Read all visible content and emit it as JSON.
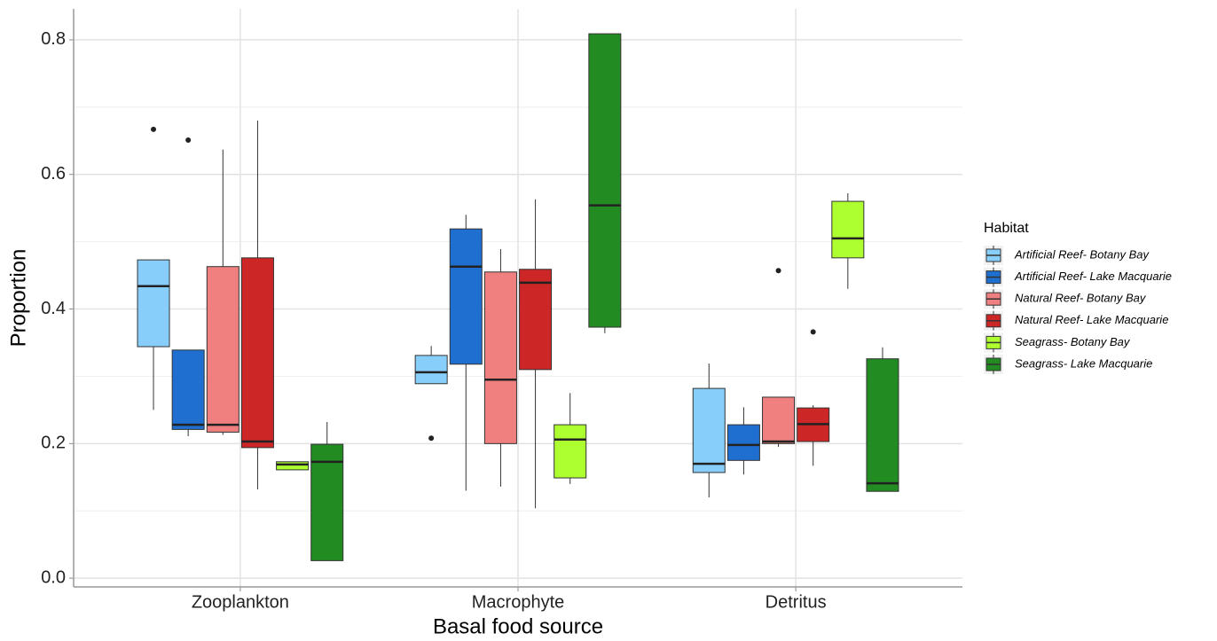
{
  "chart_data": {
    "type": "box",
    "x_label": "Basal food source",
    "y_label": "Proportion",
    "legend_title": "Habitat",
    "legend": "right",
    "grid": true,
    "categories": [
      "Zooplankton",
      "Macrophyte",
      "Detritus"
    ],
    "ylim": [
      -0.013,
      0.846
    ],
    "yticks": [
      {
        "value": 0,
        "label": "0.0"
      },
      0.2,
      0.4,
      0.6,
      0.8
    ],
    "minor_yticks": [
      0.1,
      0.3,
      0.5,
      0.7
    ],
    "series": [
      {
        "name": "Artificial Reef- Botany Bay",
        "color": "#87cefa",
        "low": [
          0.25,
          0.289,
          0.12
        ],
        "q1": [
          0.344,
          0.289,
          0.157
        ],
        "median": [
          0.434,
          0.306,
          0.17
        ],
        "q3": [
          0.473,
          0.331,
          0.282
        ],
        "high": [
          0.473,
          0.345,
          0.319
        ],
        "outliers": [
          [
            0.667
          ],
          [
            0.208
          ],
          []
        ]
      },
      {
        "name": "Artificial Reef- Lake Macquarie",
        "color": "#1e6fd0",
        "low": [
          0.211,
          0.13,
          0.154
        ],
        "q1": [
          0.221,
          0.318,
          0.175
        ],
        "median": [
          0.228,
          0.463,
          0.198
        ],
        "q3": [
          0.339,
          0.519,
          0.228
        ],
        "high": [
          0.339,
          0.54,
          0.254
        ],
        "outliers": [
          [
            0.651
          ],
          [],
          []
        ]
      },
      {
        "name": "Natural Reef- Botany Bay",
        "color": "#f08080",
        "low": [
          0.213,
          0.136,
          0.195
        ],
        "q1": [
          0.217,
          0.2,
          0.2
        ],
        "median": [
          0.228,
          0.295,
          0.203
        ],
        "q3": [
          0.463,
          0.455,
          0.269
        ],
        "high": [
          0.637,
          0.489,
          0.269
        ],
        "outliers": [
          [],
          [],
          [
            0.457
          ]
        ]
      },
      {
        "name": "Natural Reef- Lake Macquarie",
        "color": "#cd2626",
        "low": [
          0.132,
          0.104,
          0.167
        ],
        "q1": [
          0.194,
          0.31,
          0.203
        ],
        "median": [
          0.203,
          0.439,
          0.229
        ],
        "q3": [
          0.476,
          0.459,
          0.253
        ],
        "high": [
          0.68,
          0.563,
          0.257
        ],
        "outliers": [
          [],
          [],
          [
            0.366
          ]
        ]
      },
      {
        "name": "Seagrass- Botany Bay",
        "color": "#adff2f",
        "low": [
          0.161,
          0.14,
          0.43
        ],
        "q1": [
          0.161,
          0.149,
          0.476
        ],
        "median": [
          0.169,
          0.206,
          0.505
        ],
        "q3": [
          0.173,
          0.228,
          0.56
        ],
        "high": [
          0.173,
          0.275,
          0.572
        ],
        "outliers": [
          [],
          [],
          []
        ]
      },
      {
        "name": "Seagrass- Lake Macquarie",
        "color": "#228b22",
        "low": [
          0.026,
          0.364,
          0.129
        ],
        "q1": [
          0.026,
          0.373,
          0.129
        ],
        "median": [
          0.173,
          0.554,
          0.141
        ],
        "q3": [
          0.199,
          0.809,
          0.326
        ],
        "high": [
          0.232,
          0.809,
          0.343
        ],
        "outliers": [
          [],
          [],
          []
        ]
      }
    ]
  }
}
